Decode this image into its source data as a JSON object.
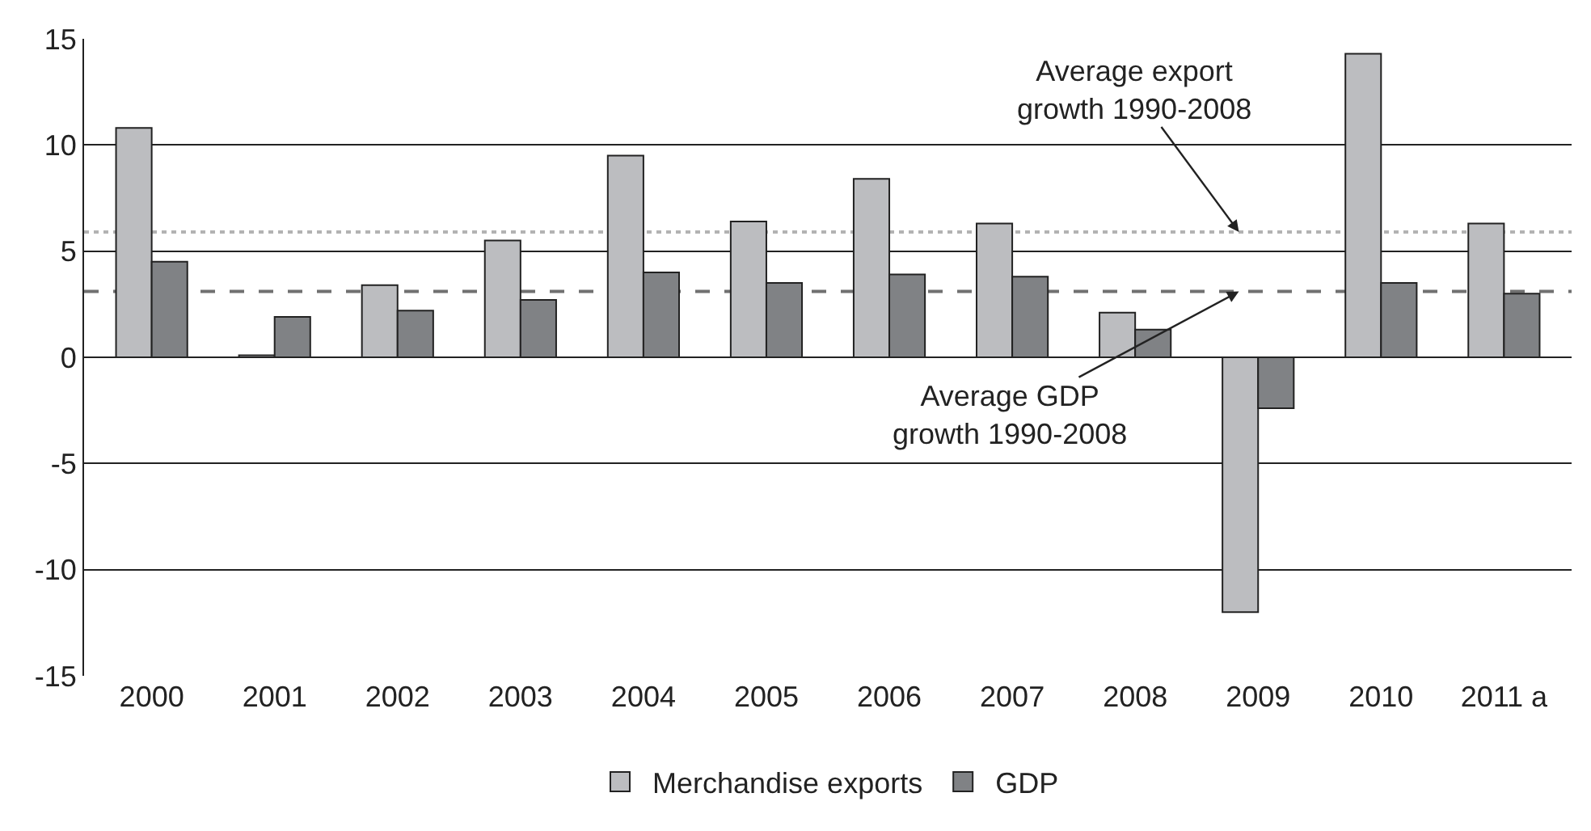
{
  "chart_data": {
    "type": "bar",
    "categories": [
      "2000",
      "2001",
      "2002",
      "2003",
      "2004",
      "2005",
      "2006",
      "2007",
      "2008",
      "2009",
      "2010",
      "2011 a"
    ],
    "series": [
      {
        "name": "Merchandise exports",
        "color": "#bcbdc0",
        "values": [
          10.8,
          0.1,
          3.4,
          5.5,
          9.5,
          6.4,
          8.4,
          6.3,
          2.1,
          -12.0,
          14.3,
          6.3
        ]
      },
      {
        "name": "GDP",
        "color": "#808285",
        "values": [
          4.5,
          1.9,
          2.2,
          2.7,
          4.0,
          3.5,
          3.9,
          3.8,
          1.3,
          -2.4,
          3.5,
          3.0
        ]
      }
    ],
    "ylim": [
      -15,
      15
    ],
    "yticks": [
      -15,
      -10,
      -5,
      0,
      5,
      10,
      15
    ],
    "grid": "y",
    "legend": "bottom",
    "ref_lines": [
      {
        "axis": "y",
        "value": 5.9,
        "label": "Average export\ngrowth 1990-2008",
        "color": "#b3b3b3",
        "line_style": "dotted"
      },
      {
        "axis": "y",
        "value": 3.1,
        "label": "Average GDP\ngrowth 1990-2008",
        "color": "#707070",
        "line_style": "dashed"
      }
    ]
  }
}
